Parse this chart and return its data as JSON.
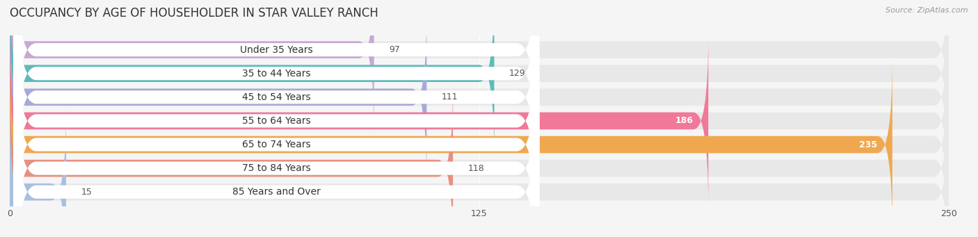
{
  "title": "OCCUPANCY BY AGE OF HOUSEHOLDER IN STAR VALLEY RANCH",
  "source": "Source: ZipAtlas.com",
  "categories": [
    "Under 35 Years",
    "35 to 44 Years",
    "45 to 54 Years",
    "55 to 64 Years",
    "65 to 74 Years",
    "75 to 84 Years",
    "85 Years and Over"
  ],
  "values": [
    97,
    129,
    111,
    186,
    235,
    118,
    15
  ],
  "bar_colors": [
    "#c9a8d4",
    "#5bbcb8",
    "#a8a8d8",
    "#f07898",
    "#f0a850",
    "#e89080",
    "#a8c0e0"
  ],
  "label_colors": [
    "#333333",
    "#333333",
    "#333333",
    "#ffffff",
    "#ffffff",
    "#333333",
    "#333333"
  ],
  "xlim": [
    0,
    250
  ],
  "xticks": [
    0,
    125,
    250
  ],
  "background_color": "#f5f5f5",
  "bar_background_color": "#e8e8e8",
  "title_fontsize": 12,
  "label_fontsize": 10,
  "value_fontsize": 9
}
